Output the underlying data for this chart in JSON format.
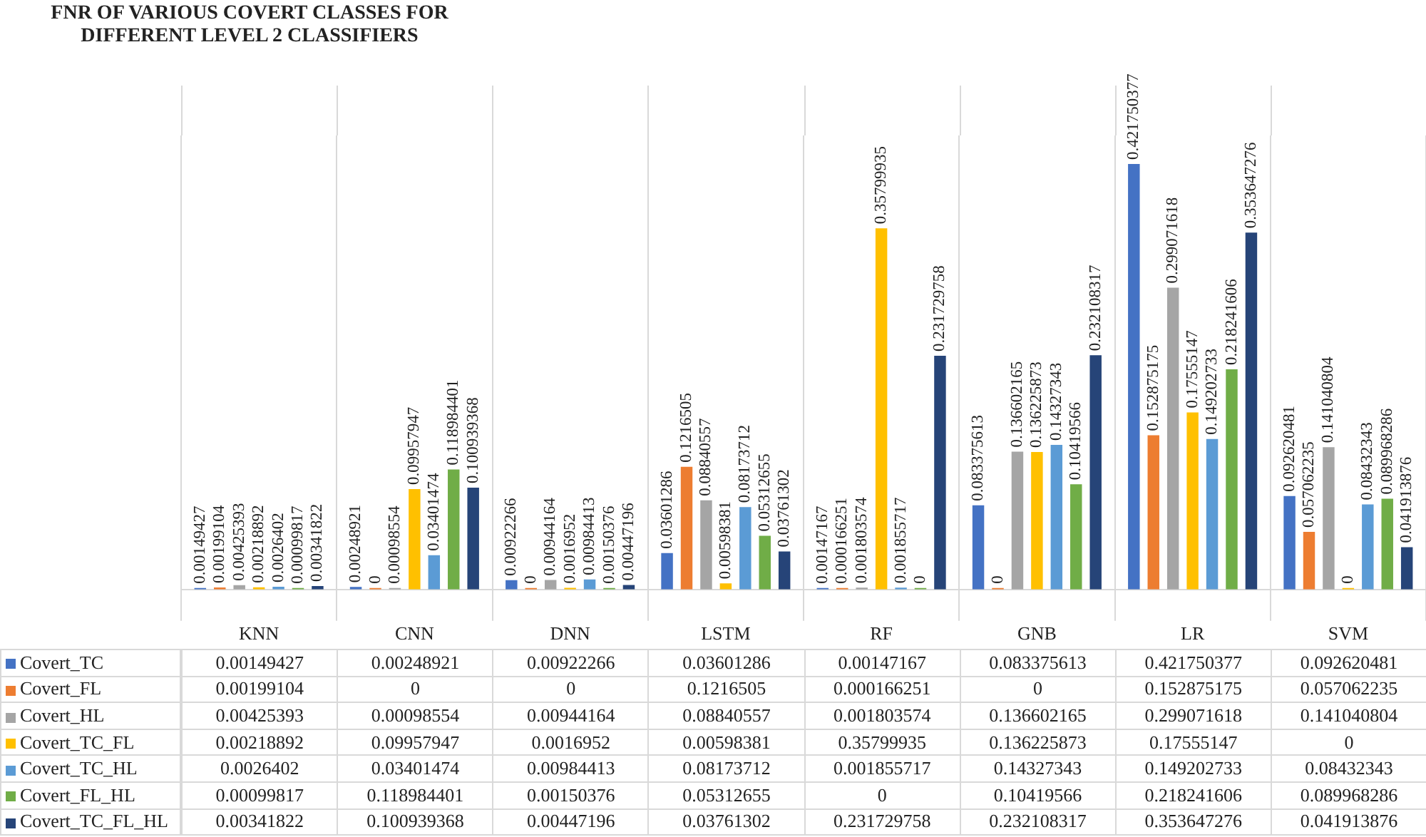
{
  "chart_data": [
    {
      "type": "bar",
      "title": "FNR OF VARIOUS COVERT CLASSES FOR DIFFERENT LEVEL 2 CLASSIFIERS",
      "categories": [
        "KNN",
        "CNN",
        "DNN",
        "LSTM",
        "RF",
        "GNB",
        "LR",
        "SVM"
      ],
      "series": [
        {
          "name": "Covert_TC",
          "color": "#4472c4",
          "values": [
            0.00149427,
            0.00248921,
            0.00922266,
            0.03601286,
            0.00147167,
            0.083375613,
            0.421750377,
            0.092620481
          ],
          "value_labels": [
            "0.00149427",
            "0.00248921",
            "0.00922266",
            "0.03601286",
            "0.00147167",
            "0.083375613",
            "0.421750377",
            "0.092620481"
          ]
        },
        {
          "name": "Covert_FL",
          "color": "#ed7d31",
          "values": [
            0.00199104,
            0,
            0,
            0.1216505,
            0.000166251,
            0,
            0.152875175,
            0.057062235
          ],
          "value_labels": [
            "0.00199104",
            "0",
            "0",
            "0.1216505",
            "0.000166251",
            "0",
            "0.152875175",
            "0.057062235"
          ]
        },
        {
          "name": "Covert_HL",
          "color": "#a5a5a5",
          "values": [
            0.00425393,
            0.00098554,
            0.00944164,
            0.08840557,
            0.001803574,
            0.136602165,
            0.299071618,
            0.141040804
          ],
          "value_labels": [
            "0.00425393",
            "0.00098554",
            "0.00944164",
            "0.08840557",
            "0.001803574",
            "0.136602165",
            "0.299071618",
            "0.141040804"
          ]
        },
        {
          "name": "Covert_TC_FL",
          "color": "#ffc000",
          "values": [
            0.00218892,
            0.09957947,
            0.0016952,
            0.00598381,
            0.35799935,
            0.136225873,
            0.17555147,
            0
          ],
          "value_labels": [
            "0.00218892",
            "0.09957947",
            "0.0016952",
            "0.00598381",
            "0.35799935",
            "0.136225873",
            "0.17555147",
            "0"
          ]
        },
        {
          "name": "Covert_TC_HL",
          "color": "#5b9bd5",
          "values": [
            0.0026402,
            0.03401474,
            0.00984413,
            0.08173712,
            0.001855717,
            0.14327343,
            0.149202733,
            0.08432343
          ],
          "value_labels": [
            "0.0026402",
            "0.03401474",
            "0.00984413",
            "0.08173712",
            "0.001855717",
            "0.14327343",
            "0.149202733",
            "0.08432343"
          ]
        },
        {
          "name": "Covert_FL_HL",
          "color": "#70ad47",
          "values": [
            0.00099817,
            0.118984401,
            0.00150376,
            0.05312655,
            0,
            0.10419566,
            0.218241606,
            0.089968286
          ],
          "value_labels": [
            "0.00099817",
            "0.118984401",
            "0.00150376",
            "0.05312655",
            "0",
            "0.10419566",
            "0.218241606",
            "0.089968286"
          ]
        },
        {
          "name": "Covert_TC_FL_HL",
          "color": "#264478",
          "values": [
            0.00341822,
            0.100939368,
            0.00447196,
            0.03761302,
            0.231729758,
            0.232108317,
            0.353647276,
            0.041913876
          ],
          "value_labels": [
            "0.00341822",
            "0.100939368",
            "0.00447196",
            "0.03761302",
            "0.231729758",
            "0.232108317",
            "0.353647276",
            "0.041913876"
          ]
        }
      ],
      "legend": "bottom",
      "grid": "x"
    },
    {
      "type": "other",
      "annotations": [
        "0.00149427",
        "0.00248921",
        "0.00922266",
        "0.03601286",
        "0.00147167",
        "0.083375613",
        "0.421750377",
        "0.092620481",
        "0.00199104",
        "0",
        "0",
        "0.1216505",
        "0.000166251",
        "0",
        "0.152875175",
        "0.057062235",
        "0.00425393",
        "0.00098554",
        "0.00944164",
        "0.08840557",
        "0.001803574",
        "0.136602165",
        "0.299071618",
        "0.141040804",
        "0.00218892",
        "0.09957947",
        "0.0016952",
        "0.00598381",
        "0.35799935",
        "0.136225873",
        "0.17555147",
        "0",
        "0.0026402",
        "0.03401474",
        "0.00984413",
        "0.08173712",
        "0.001855717",
        "0.14327343",
        "0.149202733",
        "0.08432343",
        "0.00099817",
        "0.118984401",
        "0.00150376",
        "0.05312655",
        "0",
        "0.10419566",
        "0.218241606",
        "0.089968286",
        "0.00341822",
        "0.100939368",
        "0.00447196",
        "0.03761302",
        "0.231729758",
        "0.232108317",
        "0.353647276",
        "0.041913876"
      ]
    }
  ]
}
